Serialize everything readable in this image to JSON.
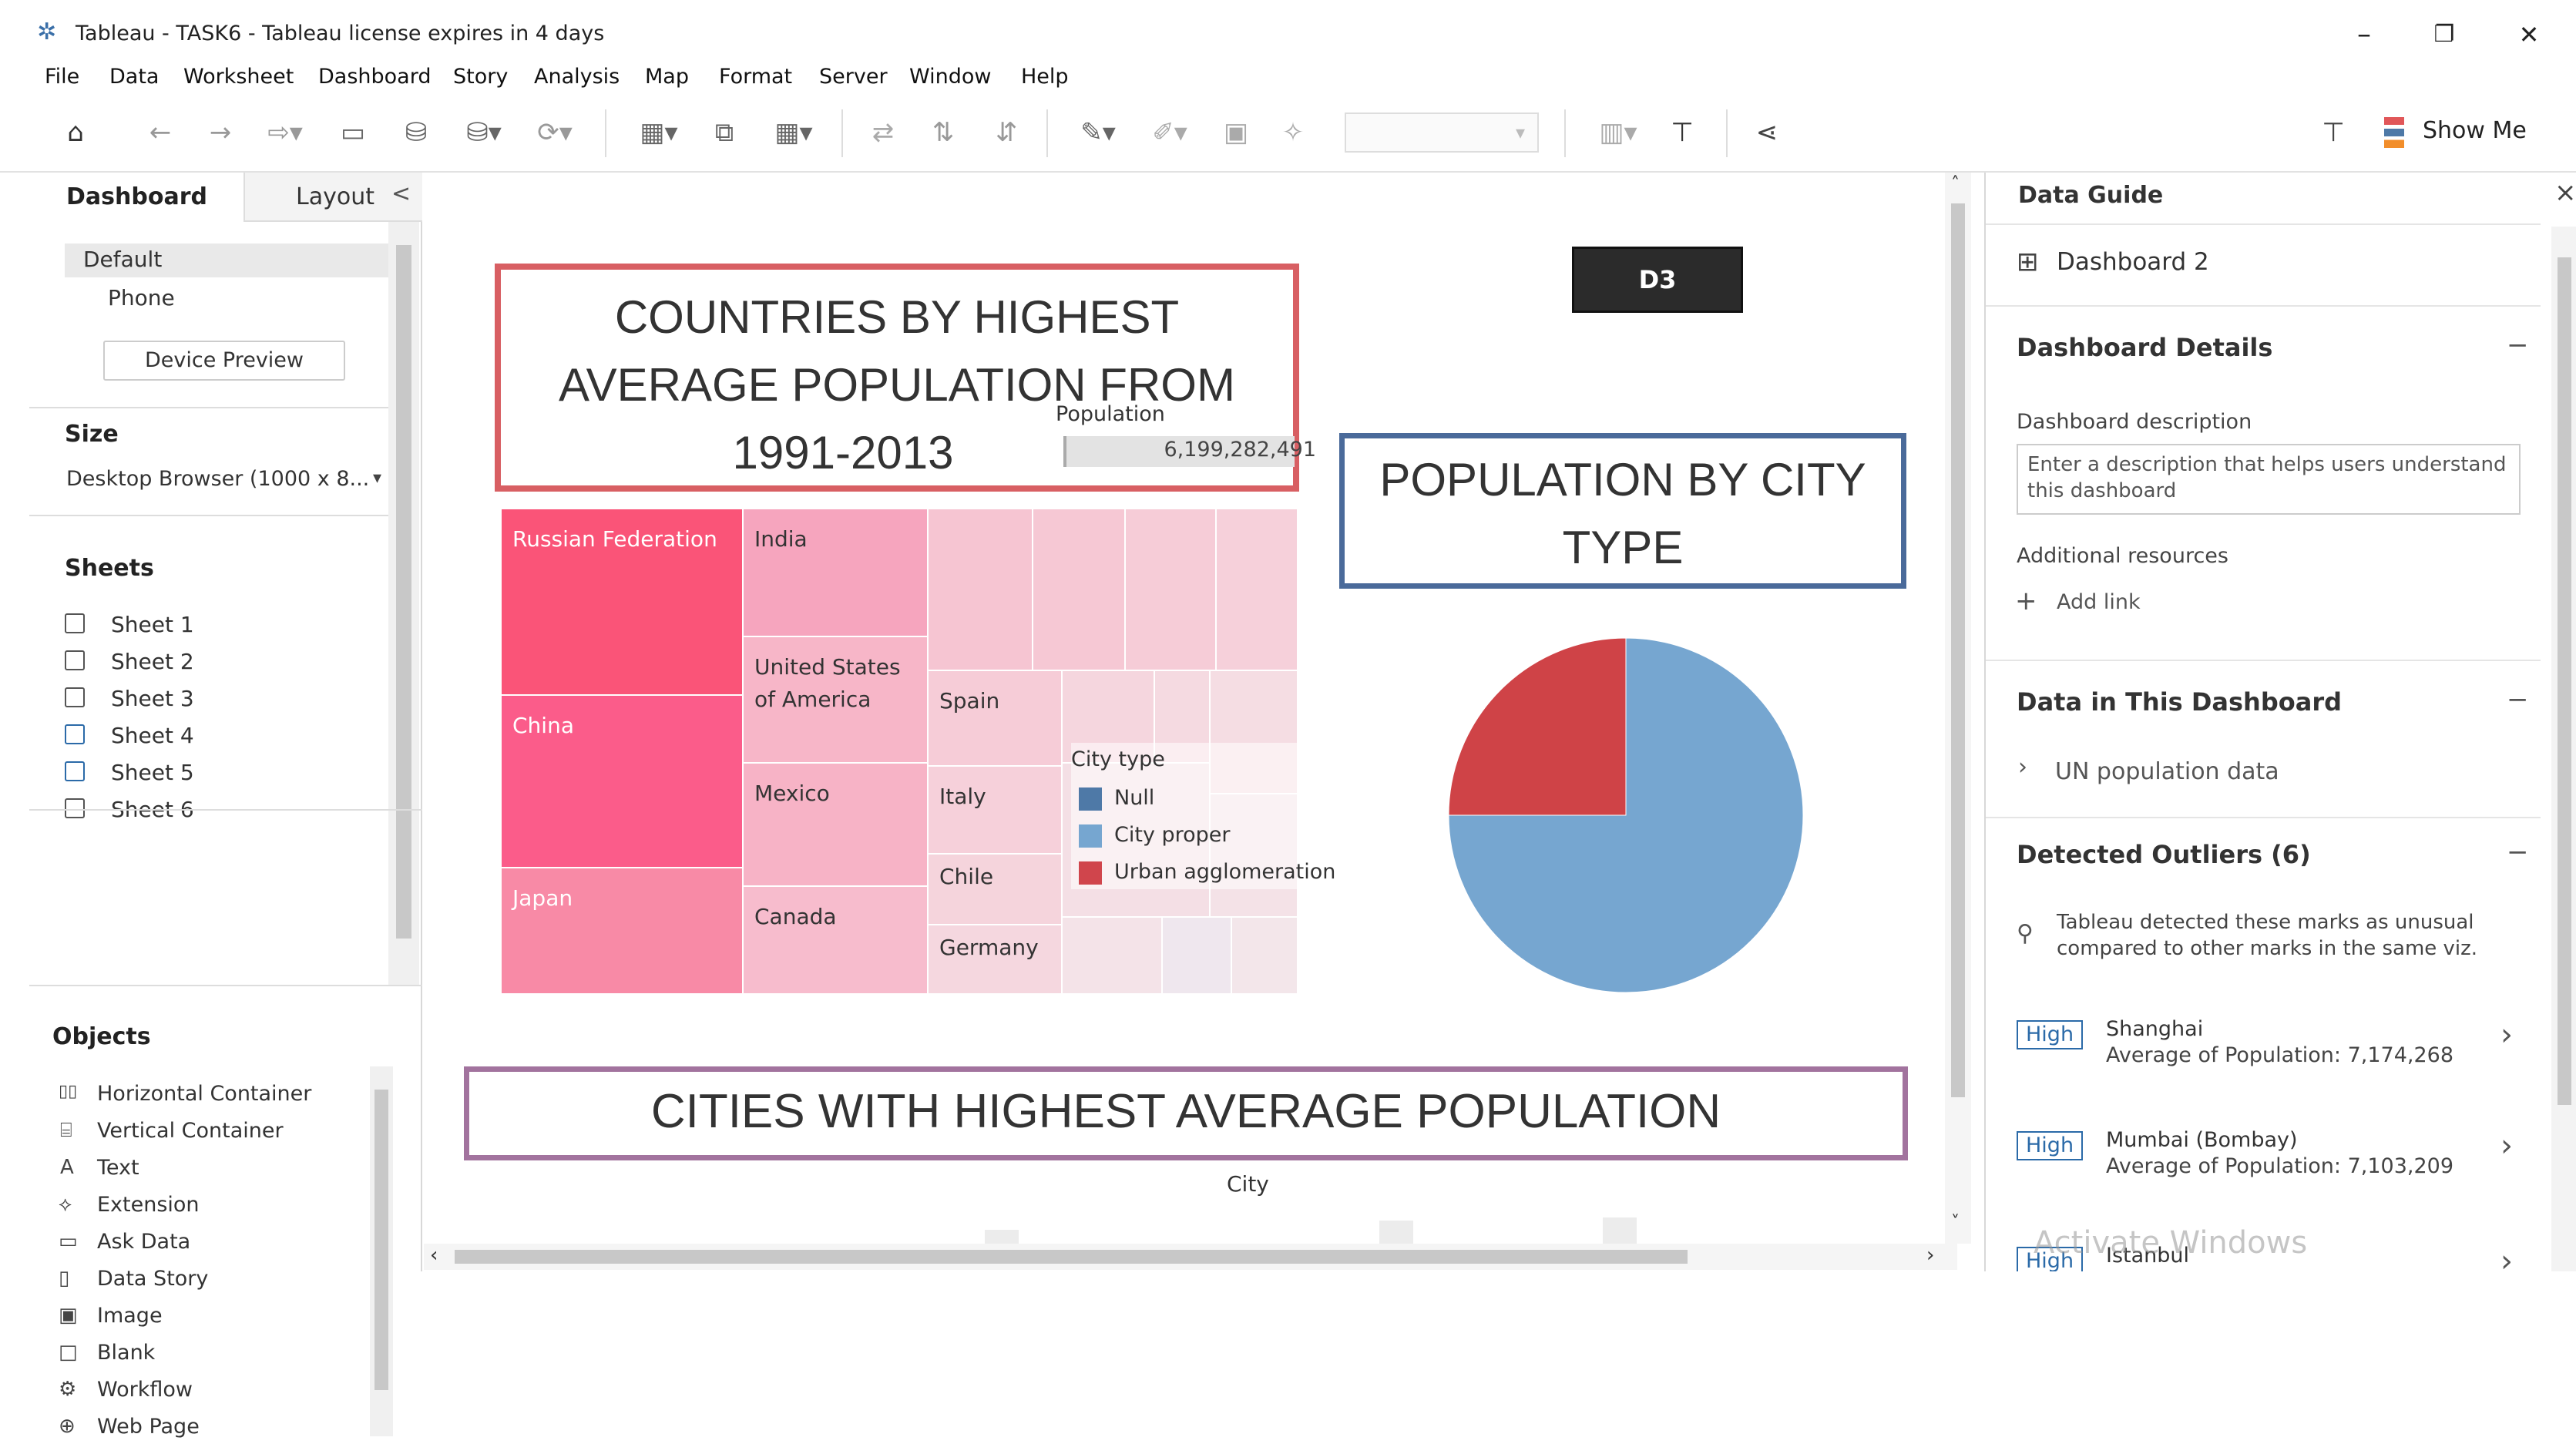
{
  "window": {
    "title": "Tableau - TASK6 - Tableau license expires in 4 days",
    "min": "–",
    "restore": "❐",
    "close": "✕"
  },
  "menu": [
    "File",
    "Data",
    "Worksheet",
    "Dashboard",
    "Story",
    "Analysis",
    "Map",
    "Format",
    "Server",
    "Window",
    "Help"
  ],
  "toolbar": {
    "show_me": "Show Me",
    "icons": [
      "home-icon",
      "back-icon",
      "forward-icon",
      "redo-icon",
      "save-icon",
      "new-datasource-icon",
      "pause-icon",
      "refresh-icon",
      "new-sheet-icon",
      "duplicate-icon",
      "clear-icon",
      "swap-icon",
      "sort-asc-icon",
      "sort-desc-icon",
      "highlight-icon",
      "annotate-icon",
      "label-icon",
      "pin-icon",
      "fit-dropdown",
      "chart-type-icon",
      "presentation-icon",
      "share-icon",
      "pin-right-icon",
      "show-me-icon"
    ]
  },
  "left_panel": {
    "tabs": [
      "Dashboard",
      "Layout"
    ],
    "collapse": "<",
    "devices": [
      "Default",
      "Phone"
    ],
    "device_preview": "Device Preview",
    "size_label": "Size",
    "size_value": "Desktop Browser (1000 x 8...",
    "sheets_label": "Sheets",
    "sheets": [
      "Sheet 1",
      "Sheet 2",
      "Sheet 3",
      "Sheet 4",
      "Sheet 5",
      "Sheet 6"
    ],
    "objects_label": "Objects",
    "objects": [
      {
        "icon": "▯▯",
        "label": "Horizontal Container"
      },
      {
        "icon": "⌸",
        "label": "Vertical Container"
      },
      {
        "icon": "A",
        "label": "Text"
      },
      {
        "icon": "⟡",
        "label": "Extension"
      },
      {
        "icon": "▭",
        "label": "Ask Data"
      },
      {
        "icon": "▯",
        "label": "Data Story"
      },
      {
        "icon": "▣",
        "label": "Image"
      },
      {
        "icon": "□",
        "label": "Blank"
      },
      {
        "icon": "⚙",
        "label": "Workflow"
      },
      {
        "icon": "⊕",
        "label": "Web Page"
      }
    ]
  },
  "canvas": {
    "title_countries": "COUNTRIES BY HIGHEST AVERAGE POPULATION FROM 1991-2013",
    "title_countries_l1": "COUNTRIES BY HIGHEST",
    "title_countries_l2": "AVERAGE POPULATION FROM",
    "title_countries_l3": "1991-2013",
    "population_label": "Population",
    "population_value": "6,199,282,491",
    "d3_label": "D3",
    "title_city_type_l1": "POPULATION BY CITY",
    "title_city_type_l2": "TYPE",
    "title_cities": "CITIES WITH HIGHEST AVERAGE POPULATION",
    "city_axis_label": "City",
    "treemap": [
      "Russian Federation",
      "India",
      "United States of America",
      "China",
      "Mexico",
      "Spain",
      "Italy",
      "Japan",
      "Canada",
      "Chile",
      "Germany"
    ],
    "legend_title": "City type",
    "legend": [
      {
        "label": "Null",
        "color": "#4e79a7"
      },
      {
        "label": "City proper",
        "color": "#76a6d0"
      },
      {
        "label": "Urban agglomeration",
        "color": "#d0454c"
      }
    ],
    "watermark": "Activate Windows"
  },
  "chart_data": {
    "type": "pie",
    "categories": [
      "City proper",
      "Urban agglomeration"
    ],
    "values": [
      75,
      25
    ],
    "colors": [
      "#76a6d0",
      "#cf4347"
    ],
    "title": "POPULATION BY CITY TYPE"
  },
  "right_panel": {
    "title": "Data Guide",
    "close": "×",
    "dashboard_name": "Dashboard 2",
    "details_heading": "Dashboard Details",
    "desc_label": "Dashboard description",
    "desc_placeholder": "Enter a description that helps users understand this dashboard",
    "resources_label": "Additional resources",
    "add_link": "Add link",
    "data_heading": "Data in This Dashboard",
    "data_source": "UN population data",
    "outliers_heading": "Detected Outliers (6)",
    "outliers_note_l1": "Tableau detected these marks as unusual",
    "outliers_note_l2": "compared to other marks in the same viz.",
    "outliers": [
      {
        "badge": "High",
        "city": "Shanghai",
        "detail": "Average of Population: 7,174,268"
      },
      {
        "badge": "High",
        "city": "Mumbai (Bombay)",
        "detail": "Average of Population: 7,103,209"
      },
      {
        "badge": "High",
        "city": "Istanbul",
        "detail": ""
      }
    ]
  }
}
